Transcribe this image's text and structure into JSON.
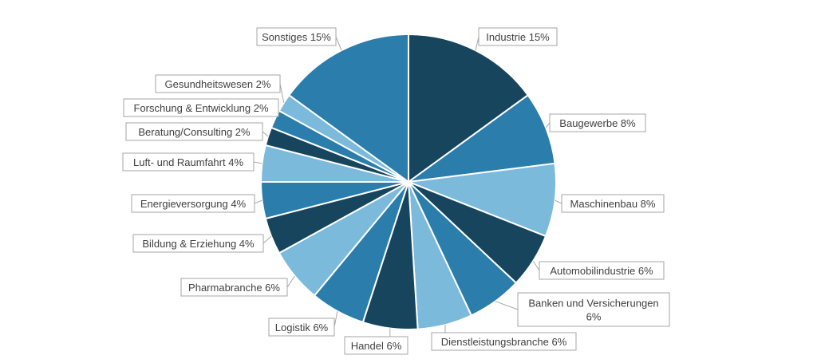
{
  "chart_data": {
    "type": "pie",
    "slices": [
      {
        "name": "Industrie",
        "value": 15,
        "label": "Industrie 15%",
        "color": "#17455e"
      },
      {
        "name": "Baugewerbe",
        "value": 8,
        "label": "Baugewerbe  8%",
        "color": "#2b7dab"
      },
      {
        "name": "Maschinenbau",
        "value": 8,
        "label": "Maschinenbau 8%",
        "color": "#7cbadc"
      },
      {
        "name": "Automobilindustrie",
        "value": 6,
        "label": "Automobilindustrie 6%",
        "color": "#17455e"
      },
      {
        "name": "Banken und Versicherungen",
        "value": 6,
        "label": "Banken und Versicherungen|6%",
        "color": "#2b7dab"
      },
      {
        "name": "Dienstleistungsbranche",
        "value": 6,
        "label": "Dienstleistungsbranche 6%",
        "color": "#7cbadc"
      },
      {
        "name": "Handel",
        "value": 6,
        "label": "Handel 6%",
        "color": "#17455e"
      },
      {
        "name": "Logistik",
        "value": 6,
        "label": "Logistik 6%",
        "color": "#2b7dab"
      },
      {
        "name": "Pharmabranche",
        "value": 6,
        "label": "Pharmabranche 6%",
        "color": "#7cbadc"
      },
      {
        "name": "Bildung & Erziehung",
        "value": 4,
        "label": "Bildung & Erziehung 4%",
        "color": "#17455e"
      },
      {
        "name": "Energieversorgung",
        "value": 4,
        "label": "Energieversorgung 4%",
        "color": "#2b7dab"
      },
      {
        "name": "Luft- und Raumfahrt",
        "value": 4,
        "label": "Luft- und Raumfahrt 4%",
        "color": "#7cbadc"
      },
      {
        "name": "Beratung/Consulting",
        "value": 2,
        "label": "Beratung/Consulting 2%",
        "color": "#17455e"
      },
      {
        "name": "Forschung & Entwicklung",
        "value": 2,
        "label": "Forschung & Entwicklung 2%",
        "color": "#2b7dab"
      },
      {
        "name": "Gesundheitswesen",
        "value": 2,
        "label": "Gesundheitswesen 2%",
        "color": "#7cbadc"
      },
      {
        "name": "Sonstiges",
        "value": 15,
        "label": "Sonstiges 15%",
        "color": "#2b7dab"
      }
    ],
    "start_angle": "12 o'clock",
    "direction": "clockwise",
    "legend": "none",
    "data_labels": "outside with leader lines"
  }
}
